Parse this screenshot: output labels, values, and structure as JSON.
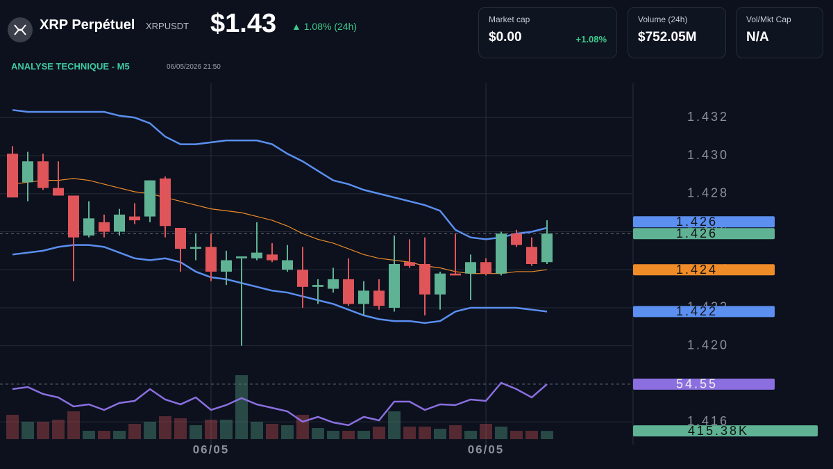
{
  "header": {
    "title": "XRP Perpétuel",
    "symbol": "XRPUSDT",
    "price": "$1.43",
    "change": "▲ 1.08% (24h)",
    "cards": [
      {
        "label": "Market cap",
        "value": "$0.00",
        "change": "+1.08%"
      },
      {
        "label": "Volume (24h)",
        "value": "$752.05M"
      },
      {
        "label": "Vol/Mkt Cap",
        "value": "N/A"
      }
    ],
    "section": "ANALYSE TECHNIQUE - M5",
    "timestamp": "06/05/2026 21:50"
  },
  "chart_data": {
    "type": "candlestick",
    "categories": [
      null,
      null,
      null,
      null,
      null,
      null,
      null,
      null,
      null,
      null,
      null,
      null,
      null,
      "06/05",
      null,
      null,
      null,
      null,
      null,
      null,
      null,
      null,
      null,
      null,
      null,
      null,
      null,
      null,
      null,
      null,
      null,
      "06/05",
      null,
      null,
      null,
      null
    ],
    "open": [
      1.4301,
      1.4286,
      1.4297,
      1.4283,
      1.4279,
      1.4258,
      1.4265,
      1.426,
      1.4268,
      1.4268,
      1.4288,
      1.4262,
      1.4251,
      1.4252,
      1.4239,
      1.4246,
      1.4246,
      1.4248,
      1.424,
      1.424,
      1.4231,
      1.423,
      1.4235,
      1.4222,
      1.4229,
      1.422,
      1.4244,
      1.4243,
      1.4227,
      1.4238,
      1.4238,
      1.4244,
      1.4238,
      1.4259,
      1.4252,
      1.4244
    ],
    "high": [
      1.4305,
      1.4302,
      1.4301,
      1.4297,
      1.4279,
      1.4276,
      1.4269,
      1.4272,
      1.4275,
      1.4287,
      1.4289,
      1.4262,
      1.4259,
      1.4259,
      1.425,
      1.4247,
      1.4265,
      1.4254,
      1.4253,
      1.4252,
      1.4235,
      1.4241,
      1.4246,
      1.4234,
      1.4235,
      1.4258,
      1.4256,
      1.4257,
      1.4239,
      1.4259,
      1.4248,
      1.4246,
      1.426,
      1.4261,
      1.4257,
      1.4266
    ],
    "low": [
      1.4278,
      1.4276,
      1.4282,
      1.4279,
      1.4234,
      1.4257,
      1.4257,
      1.4258,
      1.4264,
      1.4265,
      1.4257,
      1.4239,
      1.4245,
      1.4234,
      1.4232,
      1.42,
      1.4245,
      1.4244,
      1.4239,
      1.422,
      1.4222,
      1.4228,
      1.4221,
      1.4216,
      1.4219,
      1.4218,
      1.4241,
      1.4216,
      1.4219,
      1.4237,
      1.4224,
      1.4237,
      1.4237,
      1.4252,
      1.4242,
      1.4243
    ],
    "close": [
      1.4278,
      1.4297,
      1.4283,
      1.4279,
      1.4257,
      1.4267,
      1.426,
      1.4269,
      1.4266,
      1.4287,
      1.4263,
      1.4251,
      1.4252,
      1.4239,
      1.4245,
      1.4247,
      1.4249,
      1.4245,
      1.4245,
      1.4231,
      1.4232,
      1.4235,
      1.4222,
      1.4229,
      1.4221,
      1.4243,
      1.4242,
      1.4227,
      1.4238,
      1.4237,
      1.4244,
      1.4238,
      1.4259,
      1.4253,
      1.4243,
      1.4259
    ],
    "up_color": "#5fb394",
    "down_color": "#e0555a",
    "close_label": "1.426",
    "series": [
      {
        "color": "#5b8ff0",
        "label": "1.426",
        "values": [
          1.4324,
          1.4323,
          1.4323,
          1.4323,
          1.4323,
          1.4323,
          1.4323,
          1.4321,
          1.432,
          1.4317,
          1.431,
          1.4306,
          1.4306,
          1.4307,
          1.4308,
          1.4308,
          1.4308,
          1.4306,
          1.4301,
          1.4297,
          1.4292,
          1.4287,
          1.4285,
          1.4282,
          1.428,
          1.4278,
          1.4276,
          1.4274,
          1.4271,
          1.4261,
          1.4257,
          1.4256,
          1.4257,
          1.4259,
          1.426,
          1.4262
        ]
      },
      {
        "color": "#f08c28",
        "label": "1.424",
        "values": [
          1.4285,
          1.4286,
          1.4287,
          1.4287,
          1.4288,
          1.4287,
          1.4285,
          1.4283,
          1.4281,
          1.428,
          1.4278,
          1.4276,
          1.4274,
          1.4272,
          1.4271,
          1.427,
          1.4268,
          1.4266,
          1.4263,
          1.4259,
          1.4256,
          1.4254,
          1.4251,
          1.4248,
          1.4246,
          1.4245,
          1.4244,
          1.4242,
          1.4241,
          1.4239,
          1.4238,
          1.4238,
          1.4238,
          1.4239,
          1.4239,
          1.424
        ]
      },
      {
        "color": "#5b8ff0",
        "label": "1.422",
        "values": [
          1.4248,
          1.4249,
          1.425,
          1.4252,
          1.4253,
          1.4253,
          1.4252,
          1.4249,
          1.4246,
          1.4245,
          1.4246,
          1.4244,
          1.4239,
          1.4236,
          1.4235,
          1.4233,
          1.4231,
          1.4229,
          1.4228,
          1.4226,
          1.4224,
          1.4222,
          1.4219,
          1.4216,
          1.4214,
          1.4213,
          1.4213,
          1.4212,
          1.4213,
          1.4218,
          1.422,
          1.422,
          1.422,
          1.422,
          1.4219,
          1.4218
        ]
      }
    ],
    "ylim": [
      1.4148,
      1.4338
    ],
    "yticks": [
      1.416,
      {
        "value": 1.42,
        "label": "1.420"
      },
      1.422,
      1.424,
      1.426,
      1.428,
      {
        "value": 1.43,
        "label": "1.430"
      },
      1.432
    ],
    "grid": true,
    "rsi": {
      "color": "#8b6fe0",
      "label": "54.55",
      "ylim": [
        15,
        75
      ],
      "values": [
        51,
        52.5,
        47.5,
        45,
        38.5,
        40,
        36,
        41,
        42.5,
        51,
        43.5,
        40,
        45,
        36,
        39.5,
        44.5,
        40,
        37.5,
        35,
        27.5,
        31,
        27,
        25,
        31,
        28.5,
        42,
        42,
        36,
        40,
        39.5,
        43.5,
        42.5,
        55.5,
        51,
        45,
        54.55
      ]
    },
    "volume": {
      "label": "415.38K",
      "ylim": [
        0,
        3500000
      ],
      "values": [
        1225000,
        875000,
        875000,
        980000,
        1400000,
        420000,
        420000,
        420000,
        770000,
        875000,
        1155000,
        1050000,
        700000,
        980000,
        980000,
        3220000,
        875000,
        770000,
        700000,
        1225000,
        560000,
        420000,
        420000,
        420000,
        630000,
        1400000,
        630000,
        630000,
        525000,
        700000,
        420000,
        770000,
        630000,
        420000,
        420000,
        415380
      ]
    }
  }
}
